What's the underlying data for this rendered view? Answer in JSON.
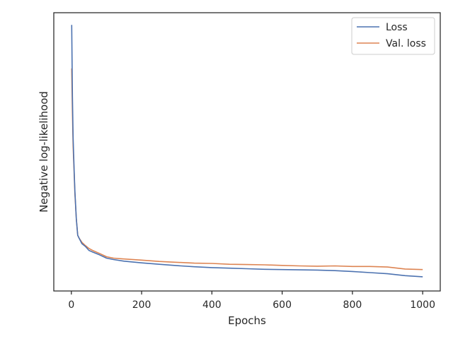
{
  "chart_data": {
    "type": "line",
    "xlabel": "Epochs",
    "ylabel": "Negative log-likelihood",
    "xlim": [
      -50,
      1050
    ],
    "ylim": [
      0,
      1
    ],
    "xticks": [
      0,
      200,
      400,
      600,
      800,
      1000
    ],
    "xtick_labels": [
      "0",
      "200",
      "400",
      "600",
      "800",
      "1000"
    ],
    "yticks_shown": false,
    "grid": false,
    "legend": "top-right",
    "series": [
      {
        "name": "Loss",
        "color": "#4c72b0",
        "points": [
          [
            1,
            0.956
          ],
          [
            3,
            0.7
          ],
          [
            5,
            0.55
          ],
          [
            8,
            0.43
          ],
          [
            10,
            0.36
          ],
          [
            14,
            0.26
          ],
          [
            18,
            0.2
          ],
          [
            22,
            0.19
          ],
          [
            30,
            0.17
          ],
          [
            40,
            0.16
          ],
          [
            50,
            0.146
          ],
          [
            60,
            0.14
          ],
          [
            80,
            0.13
          ],
          [
            100,
            0.118
          ],
          [
            120,
            0.113
          ],
          [
            150,
            0.107
          ],
          [
            200,
            0.101
          ],
          [
            250,
            0.096
          ],
          [
            300,
            0.091
          ],
          [
            350,
            0.087
          ],
          [
            400,
            0.084
          ],
          [
            450,
            0.082
          ],
          [
            500,
            0.08
          ],
          [
            550,
            0.078
          ],
          [
            600,
            0.077
          ],
          [
            650,
            0.076
          ],
          [
            700,
            0.075
          ],
          [
            750,
            0.073
          ],
          [
            800,
            0.07
          ],
          [
            850,
            0.066
          ],
          [
            900,
            0.062
          ],
          [
            950,
            0.055
          ],
          [
            1000,
            0.051
          ]
        ]
      },
      {
        "name": "Val. loss",
        "color": "#dd8452",
        "points": [
          [
            1,
            0.8
          ],
          [
            3,
            0.64
          ],
          [
            5,
            0.52
          ],
          [
            8,
            0.42
          ],
          [
            10,
            0.35
          ],
          [
            14,
            0.26
          ],
          [
            18,
            0.2
          ],
          [
            22,
            0.19
          ],
          [
            30,
            0.175
          ],
          [
            40,
            0.163
          ],
          [
            50,
            0.153
          ],
          [
            60,
            0.146
          ],
          [
            80,
            0.135
          ],
          [
            100,
            0.123
          ],
          [
            120,
            0.118
          ],
          [
            150,
            0.115
          ],
          [
            200,
            0.111
          ],
          [
            250,
            0.106
          ],
          [
            300,
            0.103
          ],
          [
            350,
            0.1
          ],
          [
            400,
            0.099
          ],
          [
            450,
            0.096
          ],
          [
            500,
            0.095
          ],
          [
            550,
            0.094
          ],
          [
            600,
            0.092
          ],
          [
            650,
            0.09
          ],
          [
            700,
            0.089
          ],
          [
            750,
            0.09
          ],
          [
            800,
            0.088
          ],
          [
            850,
            0.088
          ],
          [
            900,
            0.086
          ],
          [
            950,
            0.079
          ],
          [
            1000,
            0.077
          ]
        ]
      }
    ]
  }
}
